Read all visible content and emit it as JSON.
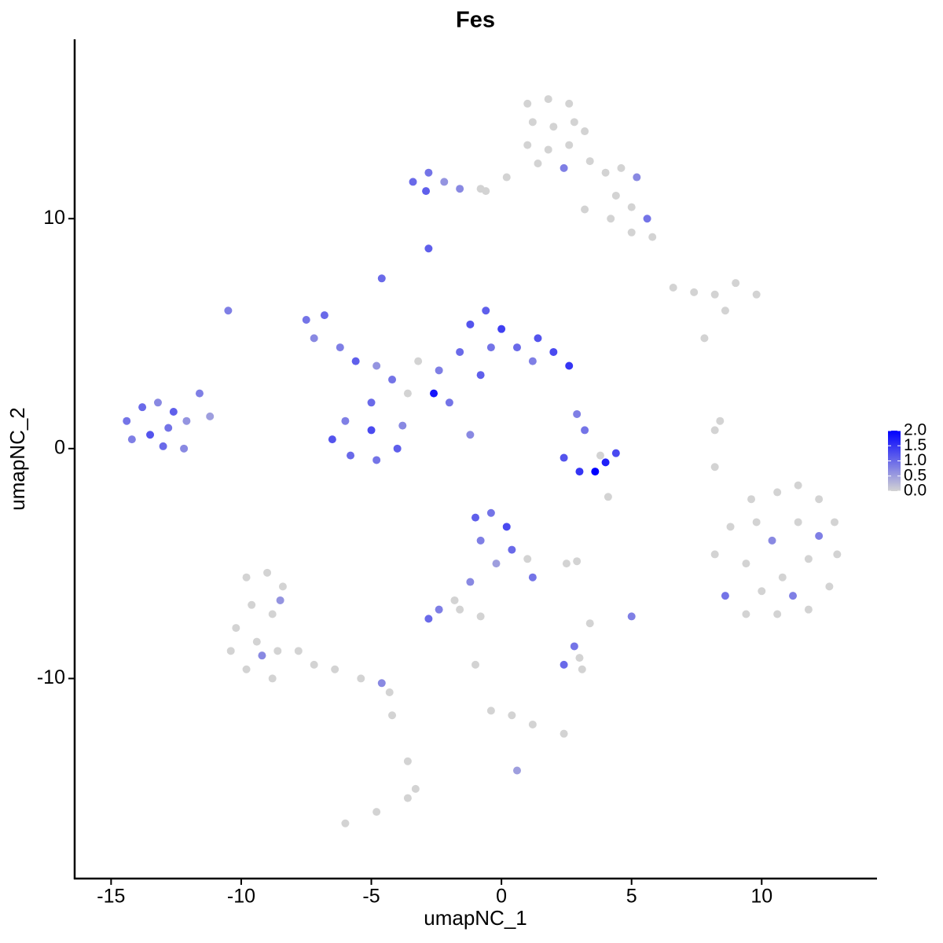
{
  "chart_data": {
    "type": "scatter",
    "title": "Fes",
    "x_label": "umapNC_1",
    "y_label": "umapNC_2",
    "xlim": [
      -16.4,
      14.4
    ],
    "ylim": [
      -18.7,
      17.8
    ],
    "xticks": [
      -15,
      -10,
      -5,
      0,
      5,
      10
    ],
    "yticks": [
      -10,
      0,
      10
    ],
    "x": [
      1,
      1.8,
      2.6,
      1.2,
      2,
      2.8,
      1,
      1.8,
      2.6,
      3.2,
      1.4,
      2.4,
      3.4,
      4,
      4.6,
      5.2,
      4.4,
      5,
      4.2,
      5.6,
      5,
      5.8,
      0.2,
      -0.6,
      3.2,
      -3.4,
      -2.8,
      -2.2,
      -1.6,
      -2.9,
      -0.8,
      -2.8,
      -4.6,
      -10.5,
      -14.4,
      -13.8,
      -13.2,
      -12.6,
      -14.2,
      -13.5,
      -12.8,
      -12.1,
      -11.6,
      -11.2,
      -13,
      -12.2,
      -7.5,
      -6.8,
      -7.2,
      -6.2,
      -5.6,
      -4.8,
      -4.2,
      -3.6,
      -5,
      -6,
      -6.5,
      -5.8,
      -4.8,
      -4,
      -3.8,
      -5,
      -2.4,
      -1.6,
      -1.2,
      -0.6,
      0,
      -0.4,
      0.6,
      1.4,
      2,
      2.6,
      1.2,
      -2.6,
      -1.2,
      -3.2,
      -2.0,
      -0.8,
      2.4,
      3,
      3.6,
      4,
      4.4,
      3.2,
      2.9,
      3.8,
      4.1,
      -1,
      -0.4,
      0.2,
      -0.8,
      0.4,
      1,
      1.2,
      -0.2,
      -1.2,
      -1.8,
      -2.4,
      -2.8,
      -1.6,
      2.5,
      2.9,
      2.4,
      3,
      2.8,
      3.1,
      3.4,
      5.0,
      -0.8,
      -1,
      -0.4,
      0.4,
      1.2,
      2.4,
      0.6,
      -9.8,
      -9,
      -8.4,
      -9.6,
      -8.8,
      -10.2,
      -9.4,
      -8.6,
      -10.4,
      -9.8,
      -8.8,
      -7.8,
      -7.2,
      -6.4,
      -5.4,
      -4.6,
      -4.3,
      -4.2,
      -3.6,
      -3.3,
      -3.6,
      -6,
      -4.8,
      -8.5,
      -9.2,
      8.2,
      8.8,
      9.6,
      10.6,
      11.4,
      12.2,
      12.8,
      12.9,
      12.6,
      11.8,
      10.6,
      9.4,
      8.6,
      9.4,
      10.4,
      11.4,
      11.8,
      10.8,
      9.8,
      10,
      11.2,
      12.2,
      8.2,
      8.2,
      8.4,
      6.6,
      7.4,
      8.2,
      9,
      9.8,
      8.6,
      7.8
    ],
    "values": [
      15,
      15.2,
      15,
      14.2,
      14,
      14.2,
      13.2,
      13,
      13.2,
      13.8,
      12.4,
      12.2,
      12.5,
      12,
      12.2,
      11.8,
      11,
      10.5,
      10,
      10,
      9.4,
      9.2,
      11.8,
      11.2,
      10.4,
      11.6,
      12,
      11.6,
      11.3,
      11.2,
      11.3,
      8.7,
      7.4,
      6.0,
      1.2,
      1.8,
      2.0,
      1.6,
      0.4,
      0.6,
      0.9,
      1.2,
      2.4,
      1.4,
      0.1,
      0.0,
      5.6,
      5.8,
      4.8,
      4.4,
      3.8,
      3.6,
      3.0,
      2.4,
      2.0,
      1.2,
      0.4,
      -0.3,
      -0.5,
      0,
      1.0,
      0.8,
      3.4,
      4.2,
      5.4,
      6.0,
      5.2,
      4.4,
      4.4,
      4.8,
      4.2,
      3.6,
      3.8,
      2.4,
      0.6,
      3.8,
      2.0,
      3.2,
      -0.4,
      -1,
      -1.0,
      -0.6,
      -0.2,
      0.8,
      1.5,
      -0.3,
      -2.1,
      -3,
      -2.8,
      -3.4,
      -4,
      -4.4,
      -4.8,
      -5.6,
      -5,
      -5.8,
      -6.6,
      -7,
      -7.4,
      -7,
      -5.0,
      -4.9,
      -9.4,
      -9.1,
      -8.6,
      -9.6,
      -7.6,
      -7.3,
      -7.3,
      -9.4,
      -11.4,
      -11.6,
      -12.0,
      -12.4,
      -14.0,
      -5.6,
      -5.4,
      -6,
      -6.8,
      -7.2,
      -7.8,
      -8.4,
      -8.8,
      -8.8,
      -9.6,
      -10,
      -8.8,
      -9.4,
      -9.6,
      -10,
      -10.2,
      -10.6,
      -11.6,
      -13.6,
      -14.8,
      -15.2,
      -16.3,
      -15.8,
      -6.6,
      -9,
      -4.6,
      -3.4,
      -2.2,
      -1.9,
      -1.6,
      -2.2,
      -3.2,
      -4.6,
      -6,
      -7,
      -7.2,
      -7.2,
      -6.4,
      -5,
      -4,
      -3.2,
      -4.8,
      -5.6,
      -3.2,
      -6.2,
      -6.4,
      -3.8,
      -0.8,
      0.8,
      1.2,
      7.0,
      6.8,
      6.7,
      7.2,
      6.7,
      6.0,
      4.8
    ],
    "expression": [
      0,
      0,
      0,
      0,
      0,
      0,
      0,
      0,
      0,
      0,
      0,
      0.8,
      0,
      0,
      0,
      0.7,
      0,
      0,
      0,
      0.9,
      0,
      0,
      0,
      0,
      0,
      1.0,
      0.9,
      0.6,
      0.7,
      1.1,
      0,
      1.1,
      1.0,
      0.8,
      0.9,
      1.0,
      0.7,
      1.1,
      0.8,
      1.2,
      0.9,
      0.6,
      0.8,
      0.5,
      1.0,
      0.7,
      0.9,
      1.0,
      0.7,
      0.8,
      1.1,
      0.6,
      0.9,
      0,
      1.0,
      0.8,
      1.2,
      1.0,
      0.9,
      1.1,
      0.7,
      1.3,
      0.8,
      1.0,
      1.2,
      1.1,
      1.4,
      0.9,
      1.0,
      1.2,
      1.3,
      1.5,
      0.8,
      1.8,
      0.7,
      0,
      0.9,
      1.1,
      1.2,
      1.5,
      2.0,
      1.7,
      1.3,
      0.9,
      0.8,
      0,
      0,
      1.1,
      0.9,
      1.3,
      0.8,
      1.0,
      0,
      0.9,
      0.5,
      0.7,
      0,
      0.8,
      1.0,
      0,
      0,
      0,
      1.0,
      0,
      0.9,
      0,
      0,
      0.8,
      0,
      0,
      0,
      0,
      0,
      0,
      0.5,
      0,
      0,
      0,
      0,
      0,
      0,
      0,
      0,
      0,
      0,
      0,
      0,
      0,
      0,
      0,
      0.7,
      0,
      0,
      0,
      0,
      0,
      0,
      0,
      0.6,
      0.7,
      0,
      0,
      0,
      0,
      0,
      0,
      0,
      0,
      0,
      0,
      0,
      0,
      0.9,
      0,
      0.7,
      0,
      0,
      0,
      0,
      0,
      0.8,
      0.8,
      0,
      0,
      0,
      0,
      0,
      0,
      0,
      0,
      0,
      0
    ],
    "colorbar": {
      "lim": [
        0,
        2
      ],
      "colors": [
        "#d3d3d3",
        "#0000ff"
      ],
      "ticks": [
        {
          "value": 0,
          "label": "0.0"
        },
        {
          "value": 0.5,
          "label": "0.5"
        },
        {
          "value": 1,
          "label": "1.0"
        },
        {
          "value": 1.5,
          "label": "1.5"
        },
        {
          "value": 2,
          "label": "2.0"
        }
      ]
    }
  }
}
